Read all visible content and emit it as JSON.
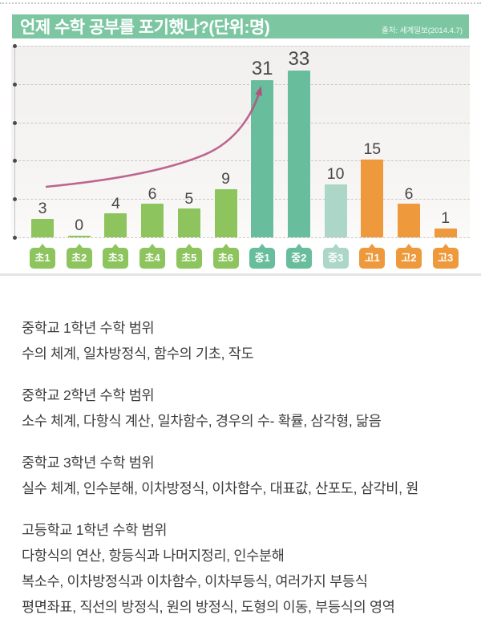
{
  "header": {
    "title": "언제 수학 공부를 포기했나?(단위:명)",
    "source": "출처: 세계일보(2014.4.7)"
  },
  "colors": {
    "header_bg": "#7cc7a2",
    "elementary_green": "#8dc45e",
    "middle_teal": "#68bd9d",
    "middle3_pale_teal": "#abd6c8",
    "high_orange": "#ee9a3c",
    "arrow_pink": "#b5517f",
    "grid_gray": "#ccc9c5",
    "value_text": "#474747"
  },
  "chart_data": {
    "type": "bar",
    "title": "언제 수학 공부를 포기했나?",
    "unit_label": "단위:명",
    "categories": [
      "초1",
      "초2",
      "초3",
      "초4",
      "초5",
      "초6",
      "중1",
      "중2",
      "중3",
      "고1",
      "고2",
      "고3"
    ],
    "values": [
      3,
      0,
      4,
      6,
      5,
      9,
      31,
      33,
      10,
      15,
      6,
      1
    ],
    "bar_colors": [
      "#8dc45e",
      "#8dc45e",
      "#8dc45e",
      "#8dc45e",
      "#8dc45e",
      "#8dc45e",
      "#68bd9d",
      "#68bd9d",
      "#abd6c8",
      "#ee9a3c",
      "#ee9a3c",
      "#ee9a3c"
    ],
    "xlabel": "",
    "ylabel": "",
    "ylim": [
      0,
      38
    ],
    "gridlines": "horizontal-dashed, 6 lines, no tick labels",
    "legend": "none",
    "annotation": "pink curved arrow rising from 초1 level up to top of 중1 bar"
  },
  "sections": [
    {
      "title": "중학교 1학년 수학 범위",
      "lines": [
        "수의 체계, 일차방정식, 함수의 기초, 작도"
      ]
    },
    {
      "title": "중학교 2학년 수학 범위",
      "lines": [
        "소수 체계, 다항식 계산, 일차함수, 경우의 수- 확률, 삼각형, 닮음"
      ]
    },
    {
      "title": "중학교 3학년 수학 범위",
      "lines": [
        "실수 체계, 인수분해, 이차방정식, 이차함수, 대표값, 산포도, 삼각비, 원"
      ]
    },
    {
      "title": "고등학교 1학년 수학 범위",
      "lines": [
        "다항식의 연산, 항등식과 나머지정리, 인수분해",
        "복소수, 이차방정식과 이차함수, 이차부등식, 여러가지 부등식",
        "평면좌표, 직선의 방정식, 원의 방정식, 도형의 이동, 부등식의 영역"
      ]
    }
  ]
}
